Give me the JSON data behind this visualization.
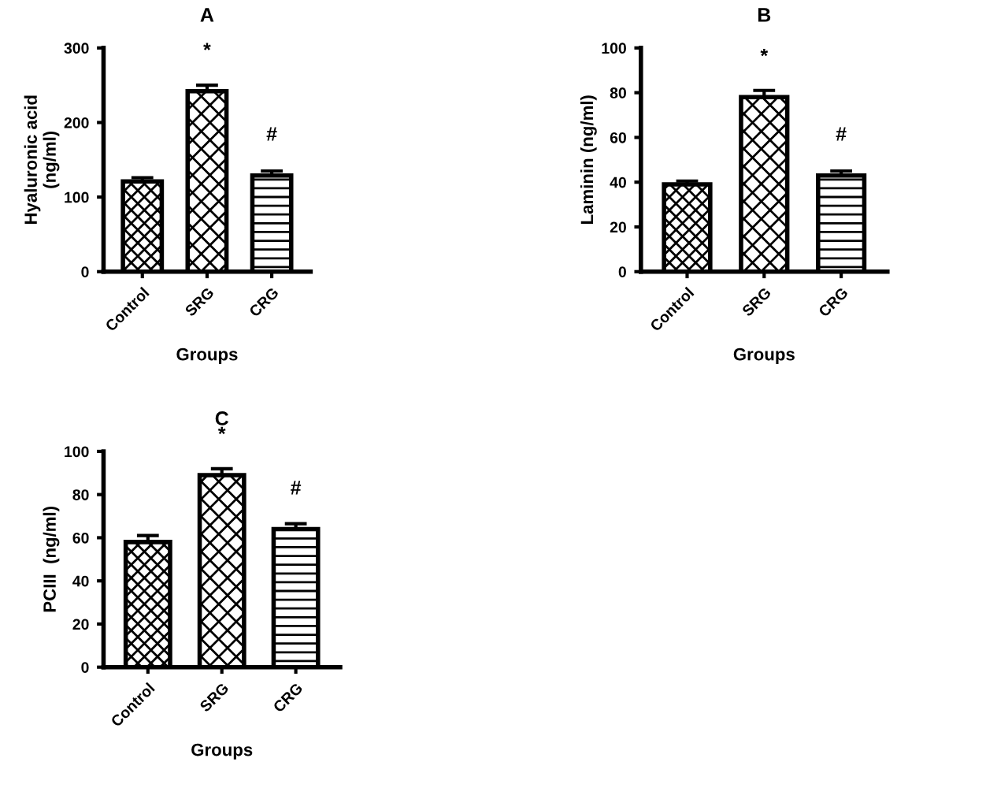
{
  "chart_data": [
    {
      "type": "bar",
      "title": "A",
      "xlabel": "Groups",
      "ylabel": "Hyaluronic acid\n(ng/ml)",
      "categories": [
        "Control",
        "SRG",
        "CRG"
      ],
      "values": [
        121,
        242,
        129
      ],
      "errors": [
        5,
        8,
        6
      ],
      "colors": [
        "#000000",
        "#000000",
        "#000000"
      ],
      "ylim": [
        0,
        300
      ],
      "yticks": [
        0,
        100,
        200,
        300
      ],
      "annotations": [
        {
          "text": "*",
          "x": "SRG",
          "y": 242
        },
        {
          "text": "#",
          "x": "CRG",
          "y": 129
        }
      ]
    },
    {
      "type": "bar",
      "title": "B",
      "xlabel": "Groups",
      "ylabel": "Laminin (ng/ml)",
      "categories": [
        "Control",
        "SRG",
        "CRG"
      ],
      "values": [
        39,
        78,
        43
      ],
      "errors": [
        1.5,
        3,
        2
      ],
      "colors": [
        "#000000",
        "#000000",
        "#000000"
      ],
      "ylim": [
        0,
        100
      ],
      "yticks": [
        0,
        20,
        40,
        60,
        80,
        100
      ],
      "annotations": [
        {
          "text": "*",
          "x": "SRG",
          "y": 78
        },
        {
          "text": "#",
          "x": "CRG",
          "y": 43
        }
      ]
    },
    {
      "type": "bar",
      "title": "C",
      "xlabel": "Groups",
      "ylabel": "PCIII  (ng/ml)",
      "categories": [
        "Control",
        "SRG",
        "CRG"
      ],
      "values": [
        58,
        89,
        64
      ],
      "errors": [
        3,
        3,
        2.5
      ],
      "colors": [
        "#000000",
        "#000000",
        "#000000"
      ],
      "ylim": [
        0,
        100
      ],
      "yticks": [
        0,
        20,
        40,
        60,
        80,
        100
      ],
      "annotations": [
        {
          "text": "*",
          "x": "SRG",
          "y": 89
        },
        {
          "text": "#",
          "x": "CRG",
          "y": 64
        }
      ]
    }
  ]
}
